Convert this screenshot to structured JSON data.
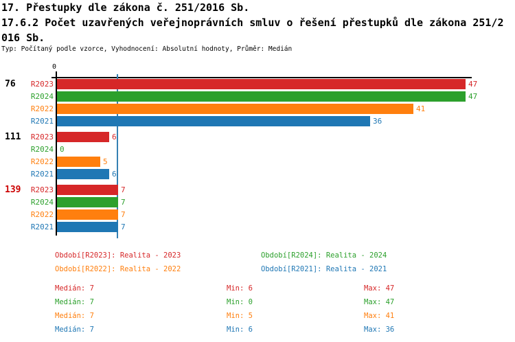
{
  "header": {
    "title_lines": [
      "17. Přestupky dle zákona č. 251/2016 Sb.",
      "17.6.2 Počet uzavřených veřejnoprávních smluv o řešení přestupků dle zákona 251/2",
      "016 Sb."
    ],
    "subtitle": "Typ: Počítaný podle vzorce, Vyhodnocení: Absolutní hodnoty, Průměr: Medián"
  },
  "colors": {
    "R2023": "#d62728",
    "R2024": "#2ca02c",
    "R2022": "#ff7f0e",
    "R2021": "#1f77b4",
    "median_line": "#3580b3",
    "axis": "#000000",
    "group_label_default": "#000000",
    "group_label_highlight": "#cc0000"
  },
  "chart_data": {
    "type": "bar",
    "orientation": "horizontal",
    "title": "17.6.2 Počet uzavřených veřejnoprávních smluv o řešení přestupků dle zákona 251/2016 Sb.",
    "x_axis": {
      "zero_label": "0",
      "min": 0,
      "max": 47,
      "gridlines": false
    },
    "median_line_value": 7,
    "series_order": [
      "R2023",
      "R2024",
      "R2022",
      "R2021"
    ],
    "groups": [
      {
        "label": "76",
        "highlight": false,
        "values": {
          "R2023": 47,
          "R2024": 47,
          "R2022": 41,
          "R2021": 36
        }
      },
      {
        "label": "111",
        "highlight": false,
        "values": {
          "R2023": 6,
          "R2024": 0,
          "R2022": 5,
          "R2021": 6
        }
      },
      {
        "label": "139",
        "highlight": true,
        "values": {
          "R2023": 7,
          "R2024": 7,
          "R2022": 7,
          "R2021": 7
        }
      }
    ]
  },
  "legend": {
    "items": [
      {
        "series": "R2023",
        "label": "Období[R2023]: Realita - 2023"
      },
      {
        "series": "R2024",
        "label": "Období[R2024]: Realita - 2024"
      },
      {
        "series": "R2022",
        "label": "Období[R2022]: Realita - 2022"
      },
      {
        "series": "R2021",
        "label": "Období[R2021]: Realita - 2021"
      }
    ]
  },
  "stats": {
    "rows": [
      {
        "series": "R2023",
        "median": "Medián: 7",
        "min": "Min: 6",
        "max": "Max: 47"
      },
      {
        "series": "R2024",
        "median": "Medián: 7",
        "min": "Min: 0",
        "max": "Max: 47"
      },
      {
        "series": "R2022",
        "median": "Medián: 7",
        "min": "Min: 5",
        "max": "Max: 41"
      },
      {
        "series": "R2021",
        "median": "Medián: 7",
        "min": "Min: 6",
        "max": "Max: 36"
      }
    ]
  }
}
